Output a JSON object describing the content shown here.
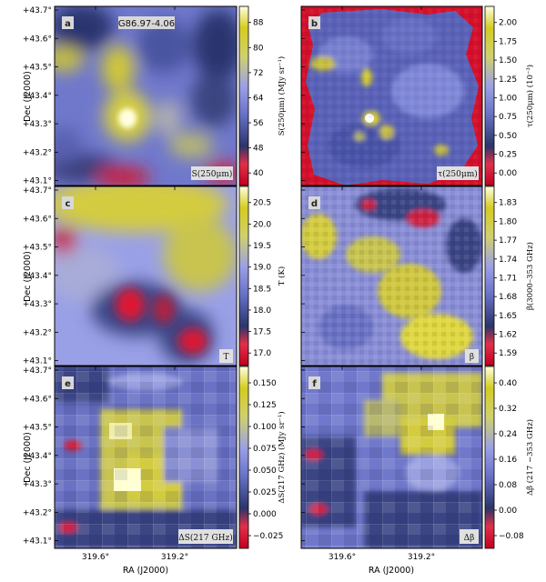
{
  "figure": {
    "object_label": "G86.97-4.06",
    "x_axis_label": "RA (J2000)",
    "y_axis_label": "Dec (J2000)",
    "ra_ticks": [
      "319.6°",
      "319.2°"
    ],
    "dec_ticks": [
      "+43.7°",
      "+43.6°",
      "+43.5°",
      "+43.4°",
      "+43.3°",
      "+43.2°",
      "+43.1°"
    ]
  },
  "colors": {
    "low": "#d40a2a",
    "mid_dark": "#2c3a6e",
    "mid": "#8088d8",
    "high": "#d8d030",
    "peak": "#ffffff"
  },
  "panels": [
    {
      "id": "a",
      "field_label": "S(250μm)",
      "colorbar_label": "S(250μm) (MJy sr⁻¹)",
      "colorbar_ticks": [
        "88",
        "80",
        "72",
        "64",
        "56",
        "48",
        "40"
      ]
    },
    {
      "id": "b",
      "field_label": "τ(250μm)",
      "colorbar_label": "τ(250μm) (10⁻³)",
      "colorbar_ticks": [
        "2.00",
        "1.75",
        "1.50",
        "1.25",
        "1.00",
        "0.75",
        "0.50",
        "0.25",
        "0.00"
      ]
    },
    {
      "id": "c",
      "field_label": "T",
      "colorbar_label": "T (K)",
      "colorbar_ticks": [
        "20.5",
        "20.0",
        "19.5",
        "19.0",
        "18.5",
        "18.0",
        "17.5",
        "17.0"
      ]
    },
    {
      "id": "d",
      "field_label": "β",
      "colorbar_label": "β(3000–353 GHz)",
      "colorbar_ticks": [
        "1.83",
        "1.80",
        "1.77",
        "1.74",
        "1.71",
        "1.68",
        "1.65",
        "1.62",
        "1.59"
      ]
    },
    {
      "id": "e",
      "field_label": "ΔS(217 GHz)",
      "colorbar_label": "ΔS(217 GHz) (MJy sr⁻¹)",
      "colorbar_ticks": [
        "0.150",
        "0.125",
        "0.100",
        "0.075",
        "0.050",
        "0.025",
        "0.000",
        "−0.025"
      ]
    },
    {
      "id": "f",
      "field_label": "Δβ",
      "colorbar_label": "Δβ (217 −353 GHz)",
      "colorbar_ticks": [
        "0.40",
        "0.32",
        "0.24",
        "0.16",
        "0.08",
        "0.00",
        "−0.08"
      ]
    }
  ]
}
